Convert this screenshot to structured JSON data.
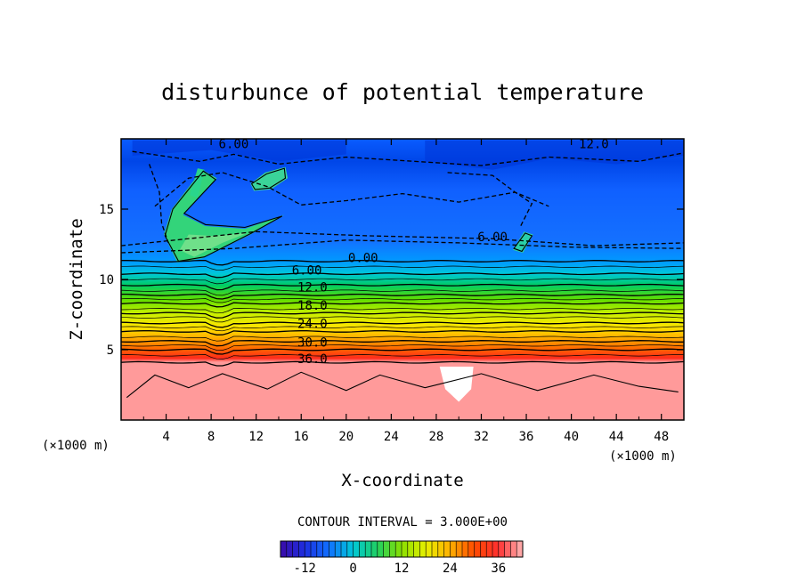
{
  "chart_data": {
    "type": "heatmap",
    "title": "disturbunce of potential temperature",
    "xlabel": "X-coordinate",
    "ylabel": "Z-coordinate",
    "x_unit_left": "(×1000 m)",
    "x_unit_right": "(×1000 m)",
    "xlim": [
      0,
      50
    ],
    "ylim": [
      0,
      20
    ],
    "x_ticks": [
      4,
      8,
      12,
      16,
      20,
      24,
      28,
      32,
      36,
      40,
      44,
      48
    ],
    "y_ticks": [
      5,
      10,
      15
    ],
    "contour_interval_text": "CONTOUR INTERVAL = 3.000E+00",
    "contour_labels": [
      {
        "text": "6.00",
        "x": 10,
        "z": 19.4
      },
      {
        "text": "12.0",
        "x": 42,
        "z": 19.4
      },
      {
        "text": "6.00",
        "x": 33,
        "z": 12.8
      },
      {
        "text": "0.00",
        "x": 21.5,
        "z": 11.3
      },
      {
        "text": "6.00",
        "x": 16.5,
        "z": 10.4
      },
      {
        "text": "12.0",
        "x": 17,
        "z": 9.2
      },
      {
        "text": "18.0",
        "x": 17,
        "z": 7.9
      },
      {
        "text": "24.0",
        "x": 17,
        "z": 6.6
      },
      {
        "text": "30.0",
        "x": 17,
        "z": 5.3
      },
      {
        "text": "36.0",
        "x": 17,
        "z": 4.1
      }
    ],
    "colorbar": {
      "range": [
        -18,
        42
      ],
      "tick_values": [
        -12,
        0,
        12,
        24,
        36
      ],
      "tick_labels": [
        "-12",
        "0",
        "12",
        "24",
        "36"
      ]
    },
    "grid": false,
    "legend": "none"
  }
}
